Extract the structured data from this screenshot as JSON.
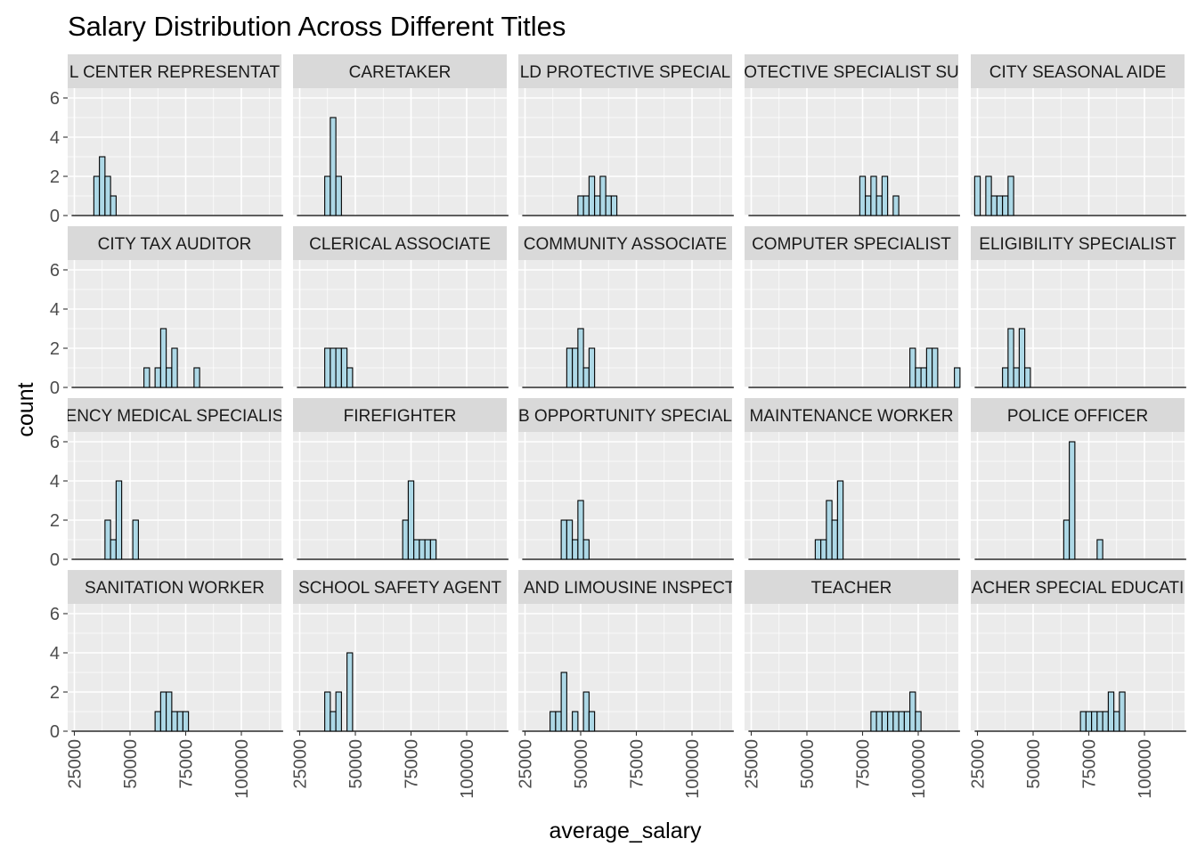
{
  "chart_data": {
    "type": "bar",
    "title": "Salary Distribution Across Different Titles",
    "xlabel": "average_salary",
    "ylabel": "count",
    "xlim": [
      22000,
      118000
    ],
    "ylim": [
      0,
      6.5
    ],
    "x_ticks": [
      25000,
      50000,
      75000,
      100000
    ],
    "y_ticks": [
      0,
      2,
      4,
      6
    ],
    "x_tick_labels": [
      "25000",
      "50000",
      "75000",
      "100000"
    ],
    "y_tick_labels": [
      "0",
      "2",
      "4",
      "6"
    ],
    "bin_width": 2500,
    "colors": {
      "bar_fill": "#add8e6",
      "bar_stroke": "#000000",
      "panel_bg": "#ebebeb",
      "strip_bg": "#d9d9d9",
      "grid": "#ffffff"
    },
    "panels": [
      {
        "label": "L CENTER REPRESENTAT",
        "bins": [
          [
            35000,
            2
          ],
          [
            37500,
            3
          ],
          [
            40000,
            2
          ],
          [
            42500,
            1
          ]
        ]
      },
      {
        "label": "CARETAKER",
        "bins": [
          [
            37500,
            2
          ],
          [
            40000,
            5
          ],
          [
            42500,
            2
          ]
        ]
      },
      {
        "label": "LD PROTECTIVE SPECIAL",
        "bins": [
          [
            50000,
            1
          ],
          [
            52500,
            1
          ],
          [
            55000,
            2
          ],
          [
            57500,
            1
          ],
          [
            60000,
            2
          ],
          [
            62500,
            1
          ],
          [
            65000,
            1
          ]
        ]
      },
      {
        "label": "OTECTIVE SPECIALIST SU",
        "bins": [
          [
            75000,
            2
          ],
          [
            77500,
            1
          ],
          [
            80000,
            2
          ],
          [
            82500,
            1
          ],
          [
            85000,
            2
          ],
          [
            90000,
            1
          ]
        ]
      },
      {
        "label": "CITY SEASONAL AIDE",
        "bins": [
          [
            25000,
            2
          ],
          [
            27500,
            0
          ],
          [
            30000,
            2
          ],
          [
            32500,
            1
          ],
          [
            35000,
            1
          ],
          [
            37500,
            1
          ],
          [
            40000,
            2
          ]
        ]
      },
      {
        "label": "CITY TAX AUDITOR",
        "bins": [
          [
            57500,
            1
          ],
          [
            62500,
            1
          ],
          [
            65000,
            3
          ],
          [
            67500,
            1
          ],
          [
            70000,
            2
          ],
          [
            80000,
            1
          ]
        ]
      },
      {
        "label": "CLERICAL ASSOCIATE",
        "bins": [
          [
            37500,
            2
          ],
          [
            40000,
            2
          ],
          [
            42500,
            2
          ],
          [
            45000,
            2
          ],
          [
            47500,
            1
          ]
        ]
      },
      {
        "label": "COMMUNITY ASSOCIATE",
        "bins": [
          [
            45000,
            2
          ],
          [
            47500,
            2
          ],
          [
            50000,
            3
          ],
          [
            52500,
            1
          ],
          [
            55000,
            2
          ]
        ]
      },
      {
        "label": "COMPUTER SPECIALIST",
        "bins": [
          [
            97500,
            2
          ],
          [
            100000,
            1
          ],
          [
            102500,
            1
          ],
          [
            105000,
            2
          ],
          [
            107500,
            2
          ],
          [
            117500,
            1
          ]
        ]
      },
      {
        "label": "ELIGIBILITY SPECIALIST",
        "bins": [
          [
            37500,
            1
          ],
          [
            40000,
            3
          ],
          [
            42500,
            1
          ],
          [
            45000,
            3
          ],
          [
            47500,
            1
          ]
        ]
      },
      {
        "label": "ENCY MEDICAL SPECIALIS",
        "bins": [
          [
            40000,
            2
          ],
          [
            42500,
            1
          ],
          [
            45000,
            4
          ],
          [
            52500,
            2
          ]
        ]
      },
      {
        "label": "FIREFIGHTER",
        "bins": [
          [
            72500,
            2
          ],
          [
            75000,
            4
          ],
          [
            77500,
            1
          ],
          [
            80000,
            1
          ],
          [
            82500,
            1
          ],
          [
            85000,
            1
          ]
        ]
      },
      {
        "label": "B OPPORTUNITY SPECIAL",
        "bins": [
          [
            42500,
            2
          ],
          [
            45000,
            2
          ],
          [
            47500,
            1
          ],
          [
            50000,
            3
          ],
          [
            52500,
            1
          ]
        ]
      },
      {
        "label": "MAINTENANCE WORKER",
        "bins": [
          [
            55000,
            1
          ],
          [
            57500,
            1
          ],
          [
            60000,
            3
          ],
          [
            62500,
            2
          ],
          [
            65000,
            4
          ]
        ]
      },
      {
        "label": "POLICE OFFICER",
        "bins": [
          [
            65000,
            2
          ],
          [
            67500,
            6
          ],
          [
            80000,
            1
          ]
        ]
      },
      {
        "label": "SANITATION WORKER",
        "bins": [
          [
            62500,
            1
          ],
          [
            65000,
            2
          ],
          [
            67500,
            2
          ],
          [
            70000,
            1
          ],
          [
            72500,
            1
          ],
          [
            75000,
            1
          ]
        ]
      },
      {
        "label": "SCHOOL SAFETY AGENT",
        "bins": [
          [
            37500,
            2
          ],
          [
            40000,
            1
          ],
          [
            42500,
            2
          ],
          [
            47500,
            4
          ]
        ]
      },
      {
        "label": "I AND LIMOUSINE INSPECT",
        "bins": [
          [
            37500,
            1
          ],
          [
            40000,
            1
          ],
          [
            42500,
            3
          ],
          [
            47500,
            1
          ],
          [
            52500,
            2
          ],
          [
            55000,
            1
          ]
        ]
      },
      {
        "label": "TEACHER",
        "bins": [
          [
            80000,
            1
          ],
          [
            82500,
            1
          ],
          [
            85000,
            1
          ],
          [
            87500,
            1
          ],
          [
            90000,
            1
          ],
          [
            92500,
            1
          ],
          [
            95000,
            1
          ],
          [
            97500,
            2
          ],
          [
            100000,
            1
          ]
        ]
      },
      {
        "label": "ACHER SPECIAL EDUCATI",
        "bins": [
          [
            72500,
            1
          ],
          [
            75000,
            1
          ],
          [
            77500,
            1
          ],
          [
            80000,
            1
          ],
          [
            82500,
            1
          ],
          [
            85000,
            2
          ],
          [
            87500,
            1
          ],
          [
            90000,
            2
          ]
        ]
      }
    ]
  }
}
